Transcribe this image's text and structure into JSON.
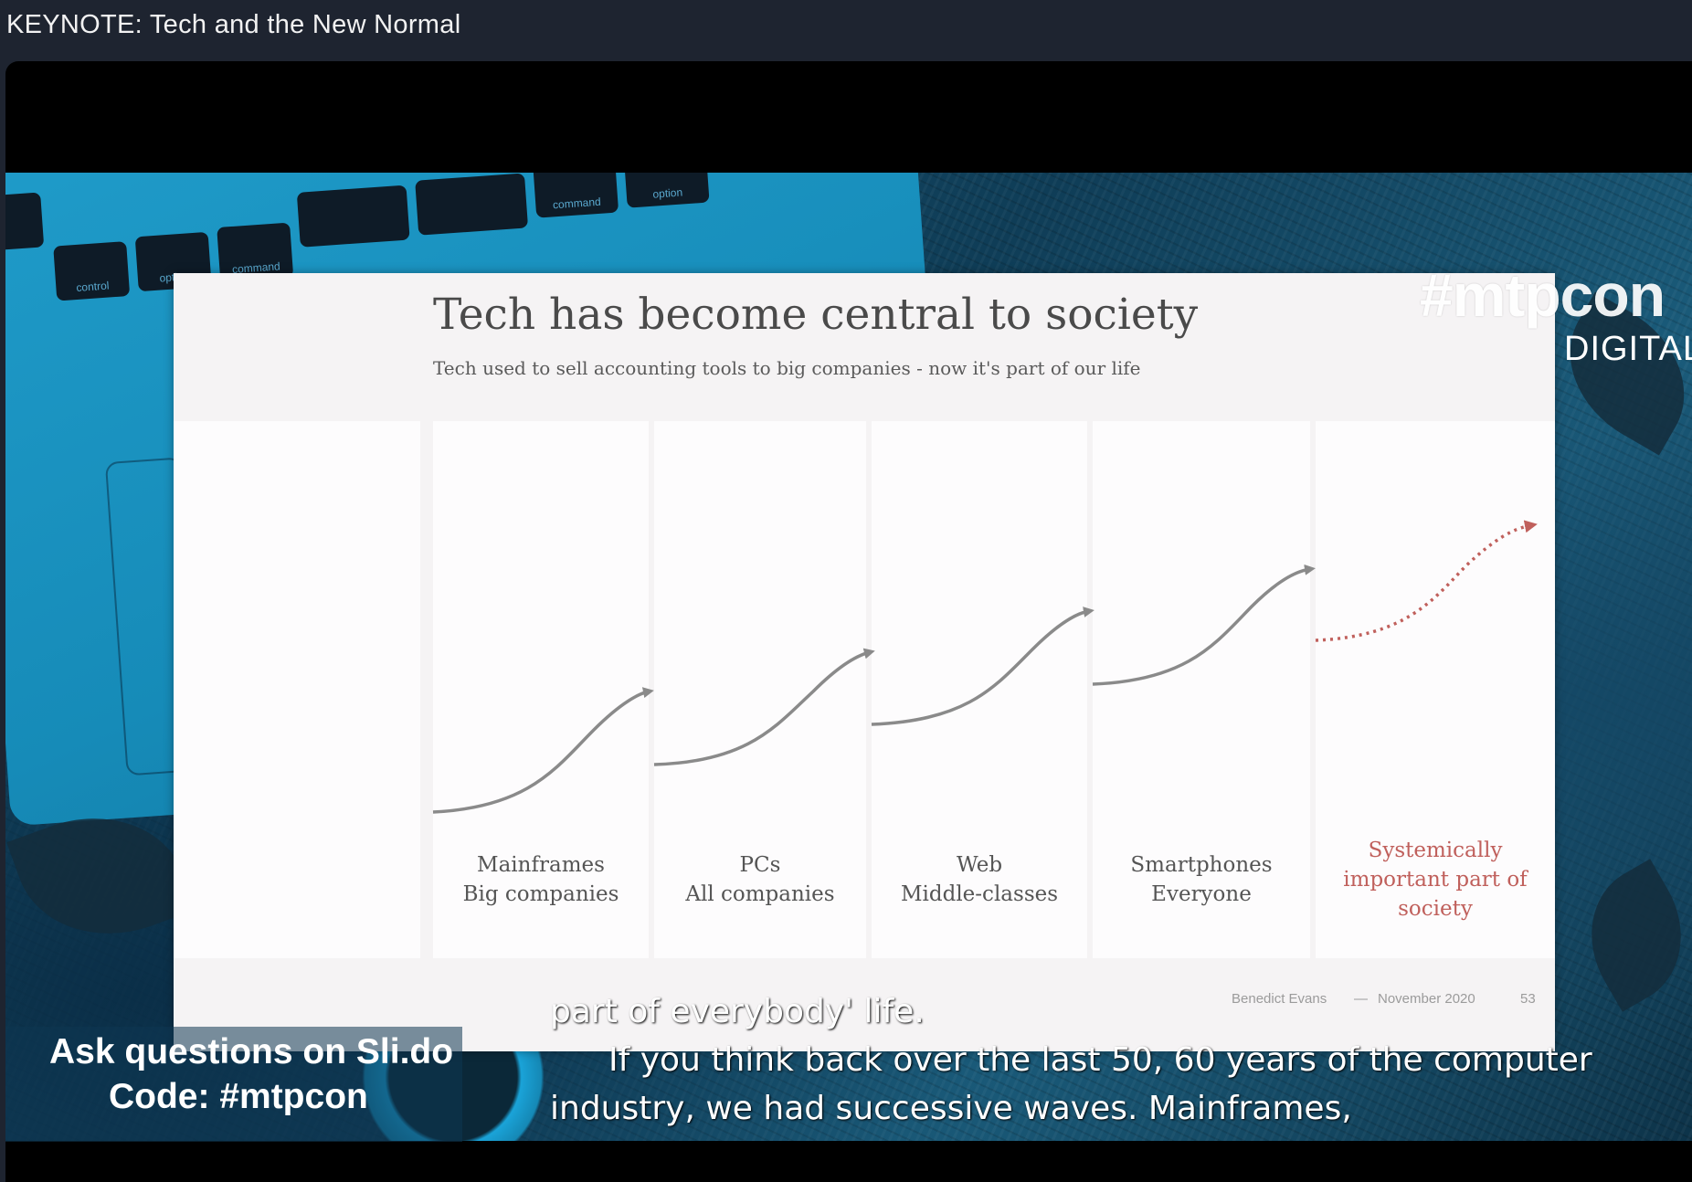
{
  "window": {
    "title": "KEYNOTE: Tech and the New Normal"
  },
  "background": {
    "keys": [
      "control",
      "option",
      "command",
      "command",
      "option"
    ]
  },
  "slide": {
    "title": "Tech has become central to society",
    "subtitle": "Tech used to sell accounting tools to big companies - now it's part of our life",
    "stages": [
      {
        "line1": "Mainframes",
        "line2": "Big companies"
      },
      {
        "line1": "PCs",
        "line2": "All companies"
      },
      {
        "line1": "Web",
        "line2": "Middle-classes"
      },
      {
        "line1": "Smartphones",
        "line2": "Everyone"
      },
      {
        "line1": "Systemically",
        "line2": "important part of",
        "line3": "society"
      }
    ],
    "colors": {
      "past_wave": "#8a8a8a",
      "future_wave": "#c0605c"
    },
    "footer": {
      "author": "Benedict Evans",
      "separator": "—",
      "date": "November 2020",
      "page": "53"
    }
  },
  "brand": {
    "hashtag": "#mtpcon",
    "sub": "DIGITAL"
  },
  "slido": {
    "line1": "Ask questions on Sli.do",
    "line2": "Code: #mtpcon"
  },
  "captions": {
    "line1": "part of everybody' life.",
    "line2": "If you think back over the last 50, 60 years of the computer",
    "line3": "industry, we had successive waves.  Mainframes,"
  }
}
